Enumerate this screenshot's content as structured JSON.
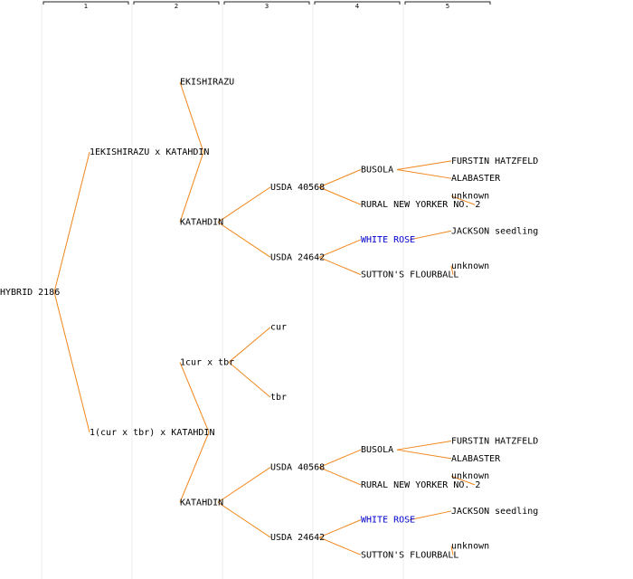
{
  "colors": {
    "line": "#f0861b",
    "text": "#000000",
    "highlight": "#0000cc",
    "column_guide": "#ececec",
    "header_bracket": "#222222"
  },
  "columns": [
    "1",
    "2",
    "3",
    "4",
    "5"
  ],
  "tree": {
    "label": "HYBRID 2186",
    "children": [
      {
        "label": "1EKISHIRAZU x KATAHDIN",
        "children": [
          {
            "label": "EKISHIRAZU",
            "children": []
          },
          {
            "label": "KATAHDIN",
            "children": [
              {
                "label": "USDA 40568",
                "children": [
                  {
                    "label": "BUSOLA",
                    "children": [
                      {
                        "label": "FURSTIN HATZFELD"
                      },
                      {
                        "label": "ALABASTER"
                      }
                    ]
                  },
                  {
                    "label": "RURAL NEW YORKER NO. 2",
                    "children": [
                      {
                        "label": "unknown"
                      }
                    ]
                  }
                ]
              },
              {
                "label": "USDA 24642",
                "children": [
                  {
                    "label": "WHITE ROSE",
                    "highlight": true,
                    "children": [
                      {
                        "label": "JACKSON seedling"
                      }
                    ]
                  },
                  {
                    "label": "SUTTON'S FLOURBALL",
                    "children": [
                      {
                        "label": "unknown"
                      }
                    ]
                  }
                ]
              }
            ]
          }
        ]
      },
      {
        "label": "1(cur x tbr) x KATAHDIN",
        "children": [
          {
            "label": "1cur x tbr",
            "children": [
              {
                "label": "cur"
              },
              {
                "label": "tbr"
              }
            ]
          },
          {
            "label": "KATAHDIN",
            "children": [
              {
                "label": "USDA 40568",
                "children": [
                  {
                    "label": "BUSOLA",
                    "children": [
                      {
                        "label": "FURSTIN HATZFELD"
                      },
                      {
                        "label": "ALABASTER"
                      }
                    ]
                  },
                  {
                    "label": "RURAL NEW YORKER NO. 2",
                    "children": [
                      {
                        "label": "unknown"
                      }
                    ]
                  }
                ]
              },
              {
                "label": "USDA 24642",
                "children": [
                  {
                    "label": "WHITE ROSE",
                    "highlight": true,
                    "children": [
                      {
                        "label": "JACKSON seedling"
                      }
                    ]
                  },
                  {
                    "label": "SUTTON'S FLOURBALL",
                    "children": [
                      {
                        "label": "unknown"
                      }
                    ]
                  }
                ]
              }
            ]
          }
        ]
      }
    ]
  }
}
